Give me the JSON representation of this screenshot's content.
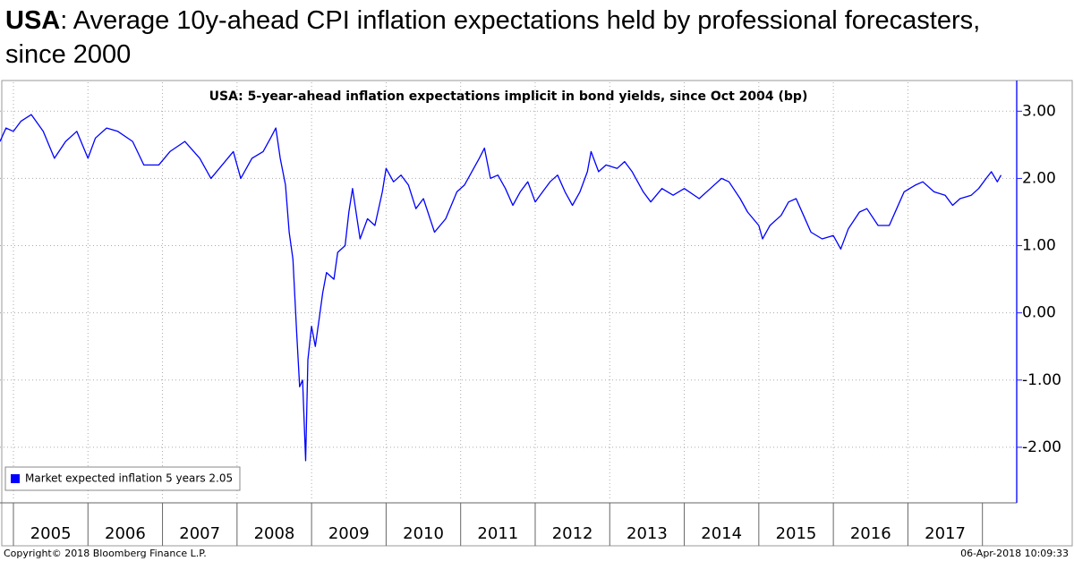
{
  "header": {
    "title_bold": "USA",
    "title_rest": ": Average 10y-ahead CPI inflation expectations held by professional forecasters,",
    "title_line2": "since 2000"
  },
  "chart_data": {
    "type": "line",
    "title": "USA: 5-year-ahead inflation expectations implicit in bond yields, since Oct 2004 (bp)",
    "xlim": [
      2004.82,
      2018.46
    ],
    "xticks": [
      2005,
      2006,
      2007,
      2008,
      2009,
      2010,
      2011,
      2012,
      2013,
      2014,
      2015,
      2016,
      2017
    ],
    "ylim": [
      -2.8,
      3.43
    ],
    "yticks": [
      {
        "value": 3,
        "label": "3.00"
      },
      {
        "value": 2,
        "label": "2.00"
      },
      {
        "value": 1,
        "label": "1.00"
      },
      {
        "value": 0,
        "label": "0.00"
      },
      {
        "value": -1,
        "label": "-1.00"
      },
      {
        "value": -2,
        "label": "-2.00"
      }
    ],
    "grid": true,
    "legend": "bottom-left",
    "series": [
      {
        "name": "Market expected inflation 5 years 2.05",
        "color": "#0000ff",
        "x": [
          2004.82,
          2004.9,
          2005.0,
          2005.1,
          2005.24,
          2005.4,
          2005.55,
          2005.7,
          2005.85,
          2006.0,
          2006.1,
          2006.25,
          2006.4,
          2006.6,
          2006.75,
          2006.95,
          2007.1,
          2007.3,
          2007.5,
          2007.65,
          2007.8,
          2007.95,
          2008.05,
          2008.2,
          2008.35,
          2008.45,
          2008.52,
          2008.58,
          2008.65,
          2008.7,
          2008.75,
          2008.8,
          2008.84,
          2008.88,
          2008.92,
          2008.95,
          2009.0,
          2009.05,
          2009.1,
          2009.15,
          2009.2,
          2009.3,
          2009.35,
          2009.45,
          2009.5,
          2009.55,
          2009.65,
          2009.75,
          2009.85,
          2009.95,
          2010.0,
          2010.1,
          2010.2,
          2010.3,
          2010.4,
          2010.5,
          2010.65,
          2010.8,
          2010.95,
          2011.05,
          2011.15,
          2011.25,
          2011.32,
          2011.4,
          2011.5,
          2011.6,
          2011.7,
          2011.8,
          2011.9,
          2012.0,
          2012.1,
          2012.2,
          2012.3,
          2012.4,
          2012.5,
          2012.6,
          2012.7,
          2012.75,
          2012.85,
          2012.95,
          2013.1,
          2013.2,
          2013.3,
          2013.45,
          2013.55,
          2013.7,
          2013.85,
          2014.0,
          2014.2,
          2014.35,
          2014.5,
          2014.6,
          2014.75,
          2014.85,
          2015.0,
          2015.05,
          2015.15,
          2015.3,
          2015.4,
          2015.5,
          2015.6,
          2015.7,
          2015.85,
          2016.0,
          2016.1,
          2016.2,
          2016.35,
          2016.45,
          2016.6,
          2016.75,
          2016.85,
          2016.95,
          2017.1,
          2017.2,
          2017.35,
          2017.5,
          2017.6,
          2017.7,
          2017.85,
          2017.95,
          2018.05,
          2018.12,
          2018.2,
          2018.25
        ],
        "values": [
          2.55,
          2.75,
          2.7,
          2.85,
          2.95,
          2.7,
          2.3,
          2.55,
          2.7,
          2.3,
          2.6,
          2.75,
          2.7,
          2.55,
          2.2,
          2.2,
          2.4,
          2.55,
          2.3,
          2.0,
          2.2,
          2.4,
          2.0,
          2.3,
          2.4,
          2.6,
          2.75,
          2.3,
          1.9,
          1.2,
          0.8,
          -0.3,
          -1.1,
          -1.0,
          -2.2,
          -0.7,
          -0.2,
          -0.5,
          -0.1,
          0.3,
          0.6,
          0.5,
          0.9,
          1.0,
          1.5,
          1.85,
          1.1,
          1.4,
          1.3,
          1.8,
          2.15,
          1.95,
          2.05,
          1.9,
          1.55,
          1.7,
          1.2,
          1.4,
          1.8,
          1.9,
          2.1,
          2.3,
          2.45,
          2.0,
          2.05,
          1.85,
          1.6,
          1.8,
          1.95,
          1.65,
          1.8,
          1.95,
          2.05,
          1.8,
          1.6,
          1.8,
          2.1,
          2.4,
          2.1,
          2.2,
          2.15,
          2.25,
          2.1,
          1.8,
          1.65,
          1.85,
          1.75,
          1.85,
          1.7,
          1.85,
          2.0,
          1.95,
          1.7,
          1.5,
          1.3,
          1.1,
          1.3,
          1.45,
          1.65,
          1.7,
          1.45,
          1.2,
          1.1,
          1.15,
          0.95,
          1.25,
          1.5,
          1.55,
          1.3,
          1.3,
          1.55,
          1.8,
          1.9,
          1.95,
          1.8,
          1.75,
          1.6,
          1.7,
          1.75,
          1.85,
          2.0,
          2.1,
          1.95,
          2.05
        ]
      }
    ]
  },
  "footer": {
    "left": "Copyright© 2018 Bloomberg Finance L.P.",
    "right": "06-Apr-2018 10:09:33"
  }
}
